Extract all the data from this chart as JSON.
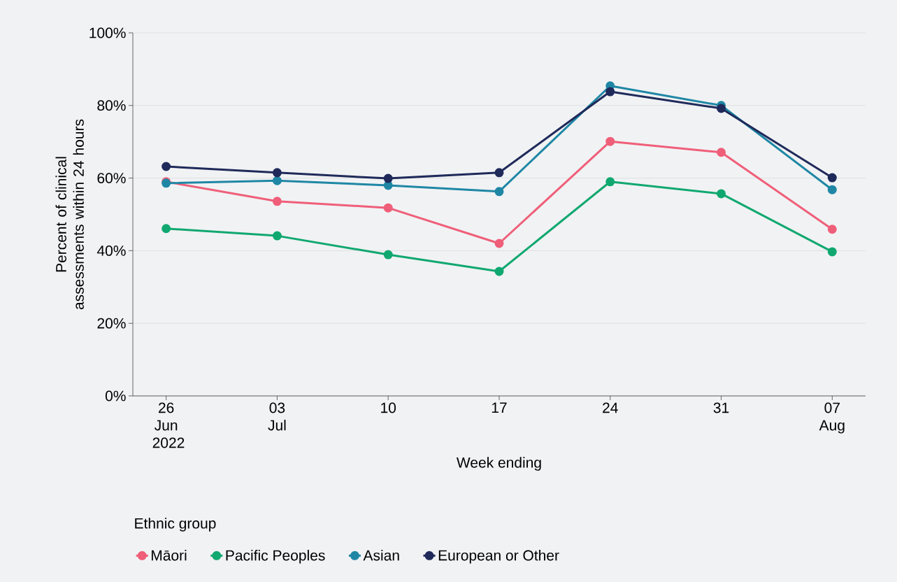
{
  "chart_data": {
    "type": "line",
    "xlabel": "Week ending",
    "ylabel": "Percent of clinical assessments within 24 hours",
    "legend_title": "Ethnic group",
    "categories": [
      "26 Jun 2022",
      "03 Jul",
      "10",
      "17",
      "24",
      "31",
      "07 Aug"
    ],
    "series": [
      {
        "name": "Māori",
        "color": "#ef5f79",
        "values": [
          59.0,
          53.6,
          51.8,
          42.0,
          70.1,
          67.1,
          45.9
        ]
      },
      {
        "name": "Pacific Peoples",
        "color": "#10a870",
        "values": [
          46.1,
          44.1,
          38.9,
          34.3,
          59.0,
          55.7,
          39.7
        ]
      },
      {
        "name": "Asian",
        "color": "#1f87a5",
        "values": [
          58.6,
          59.3,
          58.0,
          56.3,
          85.4,
          80.0,
          56.8
        ]
      },
      {
        "name": "European or Other",
        "color": "#1f2a5a",
        "values": [
          63.2,
          61.5,
          59.9,
          61.5,
          83.8,
          79.2,
          60.1
        ]
      }
    ],
    "ylim": [
      0,
      100
    ],
    "yticks": [
      {
        "value": 0,
        "label": "0%"
      },
      {
        "value": 20,
        "label": "20%"
      },
      {
        "value": 40,
        "label": "40%"
      },
      {
        "value": 60,
        "label": "60%"
      },
      {
        "value": 80,
        "label": "80%"
      },
      {
        "value": 100,
        "label": "100%"
      }
    ],
    "grid": "y",
    "legend": "bottom",
    "marker": "circle",
    "line_style": "solid"
  }
}
